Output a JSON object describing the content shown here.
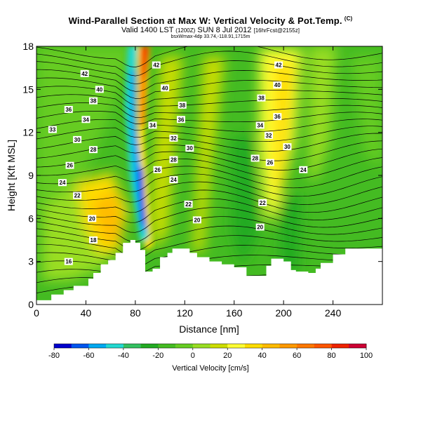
{
  "header": {
    "title": "Wind-Parallel Section at Max W: Vertical Velocity & Pot.Temp.",
    "title_mark": "(C)",
    "subtitle_main": "Valid 1400 LST",
    "subtitle_time": "(1200Z)",
    "subtitle_date": "SUN 8 Jul 2012",
    "subtitle_grid": "[16hrFcst@2155z]",
    "subsubtitle": "bsxWmax-4dp 33.74,-118.91,1715m"
  },
  "chart_data": {
    "type": "heatmap",
    "xlabel": "Distance [nm]",
    "ylabel": "Height [Kft MSL]",
    "xlim": [
      0,
      280
    ],
    "ylim": [
      0,
      18
    ],
    "xticks": [
      0,
      40,
      80,
      120,
      160,
      200,
      240
    ],
    "yticks": [
      0,
      3,
      6,
      9,
      12,
      15,
      18
    ],
    "contour_labels": [
      {
        "label": "42",
        "x": 39,
        "y": 16.1
      },
      {
        "label": "40",
        "x": 51,
        "y": 15.0
      },
      {
        "label": "38",
        "x": 46,
        "y": 14.2
      },
      {
        "label": "36",
        "x": 26,
        "y": 13.6
      },
      {
        "label": "34",
        "x": 40,
        "y": 12.9
      },
      {
        "label": "33",
        "x": 13,
        "y": 12.2
      },
      {
        "label": "30",
        "x": 33,
        "y": 11.5
      },
      {
        "label": "28",
        "x": 46,
        "y": 10.8
      },
      {
        "label": "26",
        "x": 27,
        "y": 9.7
      },
      {
        "label": "24",
        "x": 21,
        "y": 8.5
      },
      {
        "label": "22",
        "x": 33,
        "y": 7.6
      },
      {
        "label": "20",
        "x": 45,
        "y": 6.0
      },
      {
        "label": "18",
        "x": 46,
        "y": 4.5
      },
      {
        "label": "16",
        "x": 26,
        "y": 3.0
      },
      {
        "label": "42",
        "x": 97,
        "y": 16.7
      },
      {
        "label": "40",
        "x": 104,
        "y": 15.1
      },
      {
        "label": "38",
        "x": 118,
        "y": 13.9
      },
      {
        "label": "36",
        "x": 117,
        "y": 12.9
      },
      {
        "label": "34",
        "x": 94,
        "y": 12.5
      },
      {
        "label": "32",
        "x": 111,
        "y": 11.6
      },
      {
        "label": "30",
        "x": 124,
        "y": 10.9
      },
      {
        "label": "28",
        "x": 111,
        "y": 10.1
      },
      {
        "label": "26",
        "x": 98,
        "y": 9.4
      },
      {
        "label": "24",
        "x": 111,
        "y": 8.7
      },
      {
        "label": "22",
        "x": 123,
        "y": 7.0
      },
      {
        "label": "20",
        "x": 130,
        "y": 5.9
      },
      {
        "label": "42",
        "x": 196,
        "y": 16.7
      },
      {
        "label": "40",
        "x": 195,
        "y": 15.3
      },
      {
        "label": "38",
        "x": 182,
        "y": 14.4
      },
      {
        "label": "36",
        "x": 195,
        "y": 13.1
      },
      {
        "label": "34",
        "x": 181,
        "y": 12.5
      },
      {
        "label": "32",
        "x": 188,
        "y": 11.8
      },
      {
        "label": "30",
        "x": 203,
        "y": 11.0
      },
      {
        "label": "28",
        "x": 177,
        "y": 10.2
      },
      {
        "label": "26",
        "x": 189,
        "y": 9.9
      },
      {
        "label": "24",
        "x": 216,
        "y": 9.4
      },
      {
        "label": "22",
        "x": 183,
        "y": 7.1
      },
      {
        "label": "20",
        "x": 181,
        "y": 5.4
      }
    ],
    "colorbar": {
      "label": "Vertical Velocity [cm/s]",
      "min": -80,
      "max": 100,
      "step": 10,
      "tick_labels": [
        "-80",
        "-60",
        "-40",
        "-20",
        "0",
        "20",
        "40",
        "60",
        "80",
        "100"
      ],
      "colors": [
        "#0000cc",
        "#0055ee",
        "#00a8f0",
        "#22d8d0",
        "#33c060",
        "#22aa22",
        "#44bb22",
        "#66cc22",
        "#99dd22",
        "#ccdd00",
        "#ffff33",
        "#ffdd00",
        "#ffbb00",
        "#ff9900",
        "#ff7700",
        "#ff5500",
        "#ee2200",
        "#cc0033"
      ]
    },
    "terrain_profile": [
      [
        0,
        0.3
      ],
      [
        10,
        0.3
      ],
      [
        12,
        0.7
      ],
      [
        20,
        0.7
      ],
      [
        22,
        1.0
      ],
      [
        28,
        1.0
      ],
      [
        30,
        1.3
      ],
      [
        40,
        1.3
      ],
      [
        42,
        1.8
      ],
      [
        46,
        2.2
      ],
      [
        52,
        2.8
      ],
      [
        58,
        3.1
      ],
      [
        64,
        3.6
      ],
      [
        70,
        4.3
      ],
      [
        76,
        4.5
      ],
      [
        80,
        4.3
      ],
      [
        84,
        3.8
      ],
      [
        88,
        2.3
      ],
      [
        94,
        2.5
      ],
      [
        100,
        3.3
      ],
      [
        106,
        3.6
      ],
      [
        110,
        3.9
      ],
      [
        120,
        3.9
      ],
      [
        124,
        3.6
      ],
      [
        130,
        3.3
      ],
      [
        136,
        3.3
      ],
      [
        140,
        3.0
      ],
      [
        150,
        2.8
      ],
      [
        160,
        2.6
      ],
      [
        170,
        2.0
      ],
      [
        180,
        2.0
      ],
      [
        186,
        2.7
      ],
      [
        190,
        3.2
      ],
      [
        200,
        3.0
      ],
      [
        206,
        2.4
      ],
      [
        210,
        2.3
      ],
      [
        220,
        2.2
      ],
      [
        226,
        2.5
      ],
      [
        230,
        2.9
      ],
      [
        240,
        3.5
      ],
      [
        250,
        3.9
      ],
      [
        260,
        3.9
      ],
      [
        280,
        3.9
      ]
    ]
  }
}
